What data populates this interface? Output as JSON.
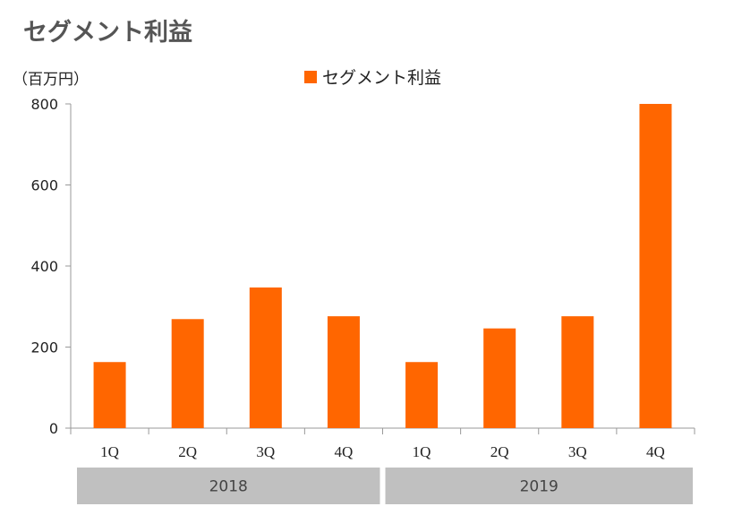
{
  "title": "セグメント利益",
  "unit_label": "（百万円）",
  "colors": {
    "bar": "#ff6600",
    "axis": "#999999",
    "group_band": "#c0c0c0"
  },
  "chart_data": {
    "type": "bar",
    "title": "セグメント利益",
    "ylabel": "（百万円）",
    "xlabel": "",
    "ylim": [
      0,
      800
    ],
    "yticks": [
      0,
      200,
      400,
      600,
      800
    ],
    "categories": [
      "1Q",
      "2Q",
      "3Q",
      "4Q",
      "1Q",
      "2Q",
      "3Q",
      "4Q"
    ],
    "groups": [
      {
        "label": "2018",
        "categories": [
          "1Q",
          "2Q",
          "3Q",
          "4Q"
        ]
      },
      {
        "label": "2019",
        "categories": [
          "1Q",
          "2Q",
          "3Q",
          "4Q"
        ]
      }
    ],
    "series": [
      {
        "name": "セグメント利益",
        "values": [
          163,
          269,
          347,
          276,
          163,
          246,
          276,
          800
        ]
      }
    ],
    "legend": "top-center",
    "grid": false
  }
}
